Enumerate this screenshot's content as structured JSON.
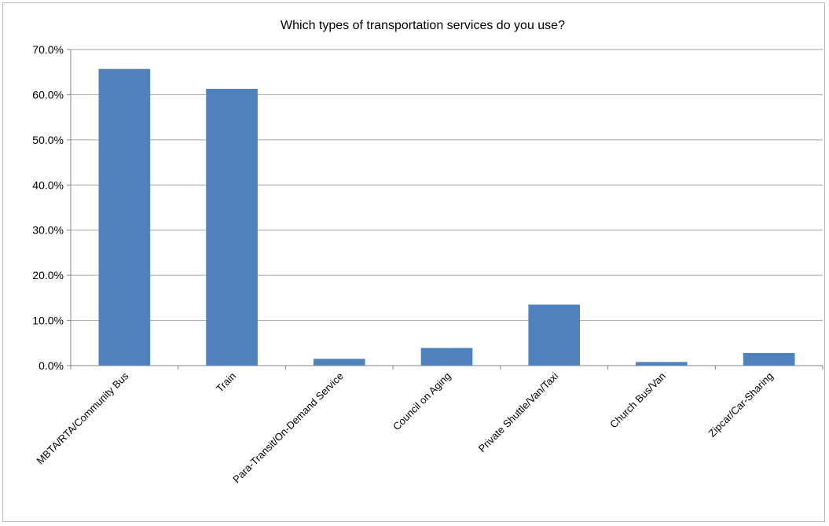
{
  "chart_data": {
    "type": "bar",
    "title": "Which types of transportation services do you use?",
    "categories": [
      "MBTA/RTA/Community Bus",
      "Train",
      "Para-Transit/On-Demand Service",
      "Council on Aging",
      "Private Shuttle/Van/Taxi",
      "Church Bus/Van",
      "Zipcar/Car-Sharing"
    ],
    "values": [
      65.7,
      61.3,
      1.5,
      3.9,
      13.5,
      0.8,
      2.8
    ],
    "value_format": "percent_one_decimal",
    "ylim": [
      0,
      70
    ],
    "yticks": [
      "0.0%",
      "10.0%",
      "20.0%",
      "30.0%",
      "40.0%",
      "50.0%",
      "60.0%",
      "70.0%"
    ],
    "ytick_values": [
      0,
      10,
      20,
      30,
      40,
      50,
      60,
      70
    ],
    "xlabel": "",
    "ylabel": "",
    "grid": "horizontal",
    "legend": "none",
    "bar_color": "#4f81bd",
    "grid_color": "#a6a6a6",
    "axis_color": "#868686"
  }
}
